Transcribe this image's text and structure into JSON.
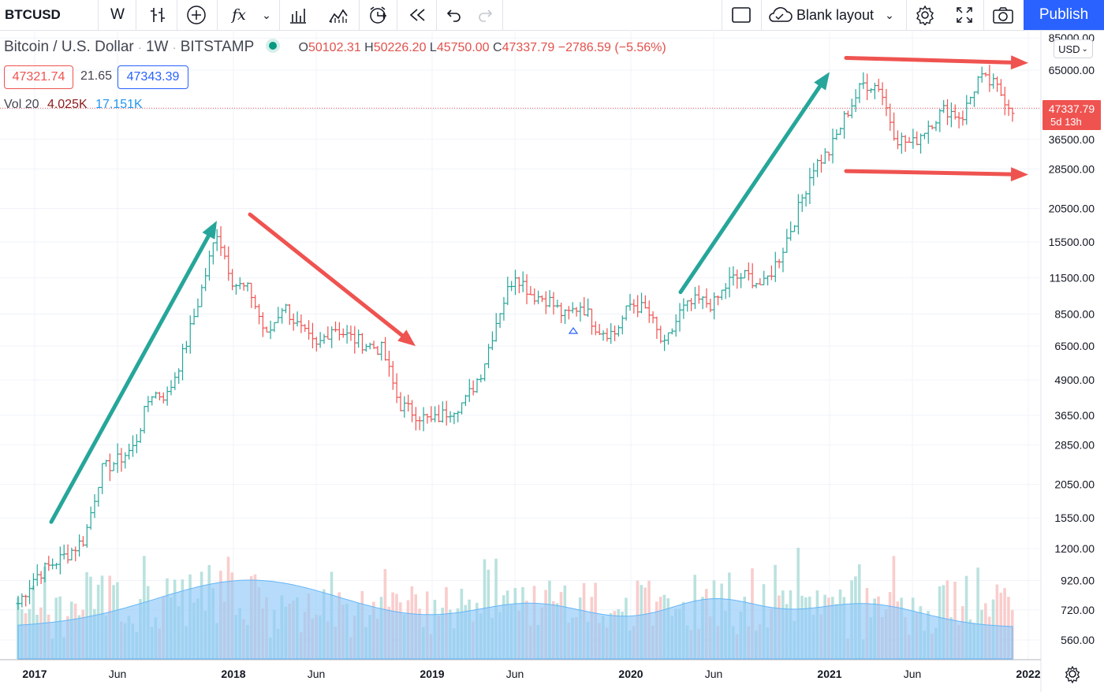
{
  "toolbar": {
    "symbol": "BTCUSD",
    "interval": "W",
    "fx": "fx",
    "layout_label": "Blank layout",
    "publish_label": "Publish"
  },
  "legend": {
    "title": "Bitcoin / U.S. Dollar",
    "interval": "1W",
    "exchange": "BITSTAMP",
    "open_label": "O",
    "open": "50102.31",
    "high_label": "H",
    "high": "50226.20",
    "low_label": "L",
    "low": "45750.00",
    "close_label": "C",
    "close": "47337.79",
    "change": "−2786.59 (−5.56%)",
    "bid": "47321.74",
    "spread": "21.65",
    "ask": "47343.39",
    "vol_label": "Vol 20",
    "vol_value": "4.025K",
    "vol_ma": "17.151K"
  },
  "currency": "USD",
  "last_price": "47337.79",
  "countdown": "5d 13h",
  "colors": {
    "up": "#26a69a",
    "down": "#ef5350",
    "accent": "#2962ff",
    "volume_ma": "#90caf9"
  },
  "chart_data": {
    "type": "candlestick",
    "scale": "log",
    "y_ticks": [
      85000,
      65000,
      47000,
      36500,
      28500,
      20500,
      15500,
      11500,
      8500,
      6500,
      4900,
      3650,
      2850,
      2050,
      1550,
      1200,
      920,
      720,
      560
    ],
    "y_tick_labels": [
      "85000.00",
      "65000.00",
      "47000.00",
      "36500.00",
      "28500.00",
      "20500.00",
      "15500.00",
      "11500.00",
      "8500.00",
      "6500.00",
      "4900.00",
      "3650.00",
      "2850.00",
      "2050.00",
      "1550.00",
      "1200.00",
      "920.00",
      "720.00",
      "560.00"
    ],
    "x_labels": [
      "2017",
      "Jun",
      "2018",
      "Jun",
      "2019",
      "Jun",
      "2020",
      "Jun",
      "2021",
      "Jun",
      "2022"
    ],
    "x_dates": [
      "2017-01",
      "2017-06",
      "2018-01",
      "2018-06",
      "2019-01",
      "2019-06",
      "2020-01",
      "2020-06",
      "2021-01",
      "2021-06",
      "2022-01"
    ],
    "ylim": [
      500,
      85000
    ],
    "price_points": [
      [
        "2016-12",
        760
      ],
      [
        "2017-01",
        950
      ],
      [
        "2017-02",
        1050
      ],
      [
        "2017-03",
        1150
      ],
      [
        "2017-04",
        1300
      ],
      [
        "2017-05",
        2300
      ],
      [
        "2017-06",
        2500
      ],
      [
        "2017-07",
        2800
      ],
      [
        "2017-08",
        4400
      ],
      [
        "2017-09",
        4300
      ],
      [
        "2017-10",
        6200
      ],
      [
        "2017-11",
        10000
      ],
      [
        "2017-12",
        17000
      ],
      [
        "2018-01",
        11000
      ],
      [
        "2018-02",
        10300
      ],
      [
        "2018-03",
        7000
      ],
      [
        "2018-04",
        9200
      ],
      [
        "2018-05",
        7500
      ],
      [
        "2018-06",
        6400
      ],
      [
        "2018-07",
        7700
      ],
      [
        "2018-08",
        7000
      ],
      [
        "2018-09",
        6600
      ],
      [
        "2018-10",
        6300
      ],
      [
        "2018-11",
        4000
      ],
      [
        "2018-12",
        3700
      ],
      [
        "2019-01",
        3450
      ],
      [
        "2019-02",
        3800
      ],
      [
        "2019-03",
        4100
      ],
      [
        "2019-04",
        5300
      ],
      [
        "2019-05",
        8500
      ],
      [
        "2019-06",
        12000
      ],
      [
        "2019-07",
        10000
      ],
      [
        "2019-08",
        9600
      ],
      [
        "2019-09",
        8300
      ],
      [
        "2019-10",
        9200
      ],
      [
        "2019-11",
        7500
      ],
      [
        "2019-12",
        7200
      ],
      [
        "2020-01",
        9300
      ],
      [
        "2020-02",
        8700
      ],
      [
        "2020-03",
        6400
      ],
      [
        "2020-04",
        8700
      ],
      [
        "2020-05",
        9500
      ],
      [
        "2020-06",
        9200
      ],
      [
        "2020-07",
        11300
      ],
      [
        "2020-08",
        11700
      ],
      [
        "2020-09",
        10700
      ],
      [
        "2020-10",
        13800
      ],
      [
        "2020-11",
        19500
      ],
      [
        "2020-12",
        29000
      ],
      [
        "2021-01",
        33000
      ],
      [
        "2021-02",
        45000
      ],
      [
        "2021-03",
        58000
      ],
      [
        "2021-04",
        57000
      ],
      [
        "2021-05",
        37000
      ],
      [
        "2021-06",
        35000
      ],
      [
        "2021-07",
        41500
      ],
      [
        "2021-08",
        47000
      ],
      [
        "2021-09",
        43800
      ],
      [
        "2021-10",
        61000
      ],
      [
        "2021-11",
        57000
      ],
      [
        "2021-12",
        47337.79
      ]
    ],
    "annotations": [
      {
        "type": "arrow",
        "color": "#26a69a",
        "from": [
          "2017-02",
          1500
        ],
        "to": [
          "2017-12",
          18500
        ]
      },
      {
        "type": "arrow",
        "color": "#ef5350",
        "from": [
          "2018-02",
          19500
        ],
        "to": [
          "2018-12",
          6500
        ]
      },
      {
        "type": "arrow",
        "color": "#26a69a",
        "from": [
          "2020-04",
          10200
        ],
        "to": [
          "2021-01",
          64000
        ]
      },
      {
        "type": "arrow",
        "color": "#ef5350",
        "from": [
          "2021-02",
          72000
        ],
        "to": [
          "2022-01",
          69000
        ]
      },
      {
        "type": "arrow",
        "color": "#ef5350",
        "from": [
          "2021-02",
          28000
        ],
        "to": [
          "2022-01",
          27200
        ]
      }
    ]
  }
}
